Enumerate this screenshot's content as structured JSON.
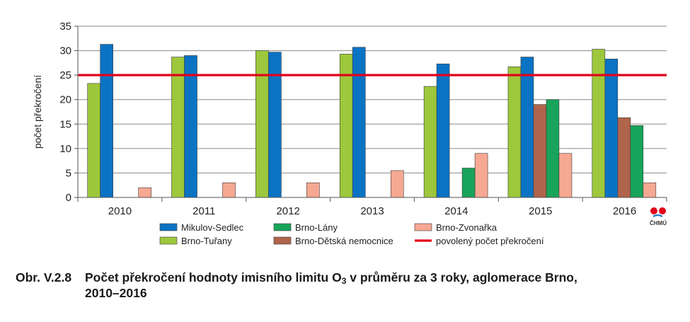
{
  "chart_data": {
    "type": "bar",
    "categories": [
      "2010",
      "2011",
      "2012",
      "2013",
      "2014",
      "2015",
      "2016"
    ],
    "ylabel": "počet překročení",
    "ylim": [
      0,
      35
    ],
    "yticks": [
      0,
      5,
      10,
      15,
      20,
      25,
      30,
      35
    ],
    "grid": "horizontal",
    "legend_position": "bottom",
    "series": [
      {
        "name": "Brno-Tuřany",
        "color": "#9dc73c",
        "values": [
          23.3,
          28.7,
          30.0,
          29.3,
          22.7,
          26.7,
          30.3
        ]
      },
      {
        "name": "Mikulov-Sedlec",
        "color": "#0b73c4",
        "values": [
          31.3,
          29.0,
          29.7,
          30.7,
          27.3,
          28.7,
          28.3
        ]
      },
      {
        "name": "Brno-Dětská nemocnice",
        "color": "#b0644b",
        "values": [
          null,
          null,
          null,
          null,
          null,
          19.0,
          16.3
        ]
      },
      {
        "name": "Brno-Lány",
        "color": "#18a45a",
        "values": [
          null,
          null,
          null,
          null,
          6.0,
          20.0,
          14.7
        ]
      },
      {
        "name": "Brno-Zvonařka",
        "color": "#f6a892",
        "values": [
          2.0,
          3.0,
          3.0,
          5.5,
          9.0,
          9.0,
          3.0
        ]
      }
    ],
    "reference_line": {
      "name": "povolený počet překročení",
      "value": 25,
      "color": "#e3001b"
    },
    "legend_order": [
      "Mikulov-Sedlec",
      "Brno-Lány",
      "Brno-Zvonařka",
      "Brno-Tuřany",
      "Brno-Dětská nemocnice",
      "povolený počet překročení"
    ]
  },
  "logo": {
    "text": "ČHMÚ",
    "colors": [
      "#e3001b",
      "#1b7fc4"
    ]
  },
  "caption": {
    "label": "Obr. V.2.8",
    "text_before_sub": "Počet překročení hodnoty imisního limitu O",
    "sub": "3",
    "text_after_sub": " v průměru za 3 roky, aglomerace Brno,",
    "line2": "2010–2016"
  }
}
